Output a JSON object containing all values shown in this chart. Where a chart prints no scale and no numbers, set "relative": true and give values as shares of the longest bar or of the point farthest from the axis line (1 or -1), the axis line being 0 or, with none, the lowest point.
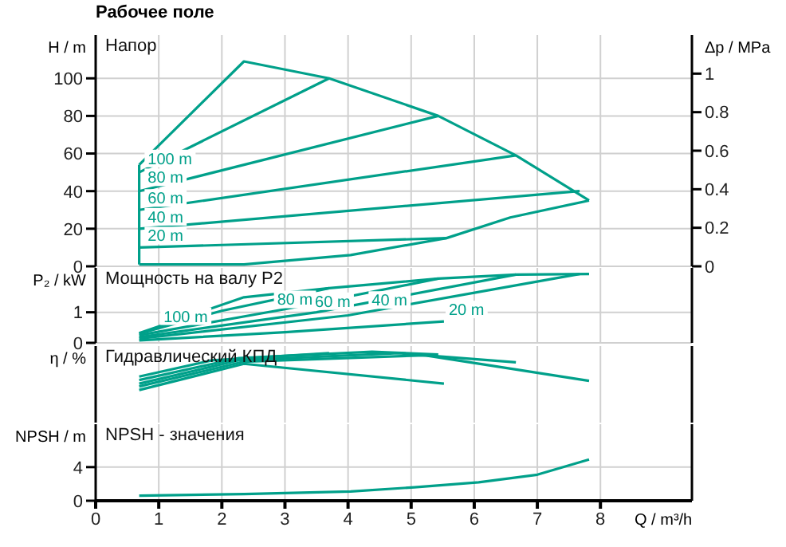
{
  "chart_data": [
    {
      "type": "line",
      "title": "Рабочее поле",
      "subtitle": "Напор",
      "ylabel": "H / m",
      "y2label": "Δp / MPa",
      "xlim": [
        0,
        9.45
      ],
      "xticks": [
        0,
        1,
        2,
        3,
        4,
        5,
        6,
        7,
        8
      ],
      "ylim": [
        0,
        123
      ],
      "yticks": [
        0,
        20,
        40,
        60,
        80,
        100
      ],
      "y2lim": [
        0,
        1.2
      ],
      "y2ticks": [
        0,
        0.2,
        0.4,
        0.6,
        0.8,
        1
      ],
      "grid": true,
      "tick_labels": "y",
      "series": [
        {
          "color": "#00a08a",
          "x": [
            0.69,
            0.69
          ],
          "values": [
            1,
            54
          ]
        },
        {
          "color": "#00a08a",
          "x": [
            0.69,
            2.35,
            3.7,
            5.43,
            6.66,
            7.82
          ],
          "values": [
            54,
            109,
            100,
            80,
            59,
            35
          ]
        },
        {
          "color": "#00a08a",
          "x": [
            0.69,
            2.35,
            4.04,
            5.56,
            6.57,
            7.82
          ],
          "values": [
            1,
            1,
            6,
            15,
            26,
            35
          ]
        },
        {
          "color": "#00a08a",
          "x": [
            0.69,
            3.7
          ],
          "values": [
            50,
            100
          ]
        },
        {
          "color": "#00a08a",
          "x": [
            0.69,
            5.43
          ],
          "values": [
            40,
            80
          ]
        },
        {
          "color": "#00a08a",
          "x": [
            0.69,
            6.66
          ],
          "values": [
            30,
            59
          ]
        },
        {
          "color": "#00a08a",
          "x": [
            0.69,
            7.67
          ],
          "values": [
            20,
            40
          ]
        },
        {
          "color": "#00a08a",
          "x": [
            0.69,
            5.56
          ],
          "values": [
            10,
            15
          ]
        }
      ],
      "annotations": [
        {
          "text": "100 m",
          "x": 0.75,
          "y": 51
        },
        {
          "text": "80 m",
          "x": 0.75,
          "y": 41
        },
        {
          "text": "60 m",
          "x": 0.75,
          "y": 30
        },
        {
          "text": "40 m",
          "x": 0.75,
          "y": 20
        },
        {
          "text": "20 m",
          "x": 0.75,
          "y": 10
        }
      ]
    },
    {
      "type": "line",
      "title": "Мощность на валу P2",
      "ylabel": "P₂ / kW",
      "xlim": [
        0,
        9.45
      ],
      "xticks": [
        0,
        1,
        2,
        3,
        4,
        5,
        6,
        7,
        8
      ],
      "ylim": [
        0,
        2.45
      ],
      "yticks": [
        0,
        1
      ],
      "grid": true,
      "tick_labels": "y",
      "series": [
        {
          "color": "#00a08a",
          "x": [
            0.69,
            2.35,
            3.7,
            5.43,
            6.66,
            7.82
          ],
          "values": [
            0.32,
            1.49,
            1.79,
            2.1,
            2.23,
            2.25
          ]
        },
        {
          "color": "#00a08a",
          "x": [
            0.69,
            2,
            3.7
          ],
          "values": [
            0.3,
            1.05,
            1.79
          ]
        },
        {
          "color": "#00a08a",
          "x": [
            0.69,
            3,
            5.43
          ],
          "values": [
            0.25,
            1.1,
            2.1
          ]
        },
        {
          "color": "#00a08a",
          "x": [
            0.69,
            3.5,
            6.66
          ],
          "values": [
            0.19,
            1.0,
            2.23
          ]
        },
        {
          "color": "#00a08a",
          "x": [
            0.69,
            4,
            7.67
          ],
          "values": [
            0.14,
            0.9,
            2.25
          ]
        },
        {
          "color": "#00a08a",
          "x": [
            0.69,
            3,
            5.52
          ],
          "values": [
            0.08,
            0.35,
            0.7
          ]
        }
      ],
      "annotations": [
        {
          "text": "100 m",
          "x": 1.0,
          "y": 0.48
        },
        {
          "text": "80 m",
          "x": 2.8,
          "y": 1.03
        },
        {
          "text": "60 m",
          "x": 3.4,
          "y": 0.97
        },
        {
          "text": "40 m",
          "x": 4.3,
          "y": 1.01
        },
        {
          "text": "20 m",
          "x": 5.52,
          "y": 0.7
        }
      ]
    },
    {
      "type": "line",
      "title": "Гидравлический КПД",
      "ylabel": "η / %",
      "relative": true,
      "xlim": [
        0,
        9.45
      ],
      "xticks": [
        0,
        1,
        2,
        3,
        4,
        5,
        6,
        7,
        8
      ],
      "grid": "x",
      "tick_labels": false,
      "series": [
        {
          "color": "#00a08a",
          "x": [
            0.69,
            1.85,
            3.7
          ],
          "values": [
            0.65,
            0.88,
            0.98
          ]
        },
        {
          "color": "#00a08a",
          "x": [
            0.69,
            2.27,
            4.38,
            5.43
          ],
          "values": [
            0.6,
            0.91,
            1,
            0.96
          ]
        },
        {
          "color": "#00a08a",
          "x": [
            0.69,
            2.27,
            4.8,
            6.66
          ],
          "values": [
            0.55,
            0.88,
            0.98,
            0.85
          ]
        },
        {
          "color": "#00a08a",
          "x": [
            0.69,
            2.35,
            5.22,
            7.82
          ],
          "values": [
            0.51,
            0.86,
            0.95,
            0.59
          ]
        },
        {
          "color": "#00a08a",
          "x": [
            0.69,
            2.35,
            5.52
          ],
          "values": [
            0.46,
            0.83,
            0.55
          ]
        }
      ]
    },
    {
      "type": "line",
      "title": "NPSH - значения",
      "ylabel": "NPSH / m",
      "xlabel": "Q / m³/h",
      "xlim": [
        0,
        9.45
      ],
      "xticks": [
        0,
        1,
        2,
        3,
        4,
        5,
        6,
        7,
        8
      ],
      "ylim": [
        0,
        9.1
      ],
      "yticks": [
        0,
        4
      ],
      "grid": true,
      "series": [
        {
          "color": "#00a08a",
          "x": [
            0.69,
            2.35,
            4.04,
            5.05,
            6.07,
            7.0,
            7.82
          ],
          "values": [
            0.6,
            0.8,
            1.1,
            1.6,
            2.2,
            3.1,
            4.9
          ]
        }
      ]
    }
  ]
}
